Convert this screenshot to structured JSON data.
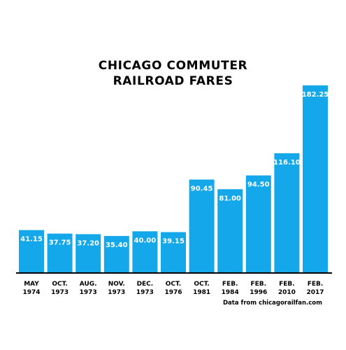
{
  "title_lines": [
    "CHICAGO COMMUTER",
    "RAILROAD FARES"
  ],
  "source_note": "Data from chicagorailfan.com",
  "colors": {
    "bar": "#14A8EB",
    "bar_label": "#ffffff",
    "text": "#000000",
    "axis": "#000000"
  },
  "chart_data": {
    "type": "bar",
    "title": "CHICAGO COMMUTER RAILROAD FARES",
    "categories": [
      [
        "MAY",
        "1974"
      ],
      [
        "OCT.",
        "1973"
      ],
      [
        "AUG.",
        "1973"
      ],
      [
        "NOV.",
        "1973"
      ],
      [
        "DEC.",
        "1973"
      ],
      [
        "OCT.",
        "1976"
      ],
      [
        "OCT.",
        "1981"
      ],
      [
        "FEB.",
        "1984"
      ],
      [
        "FEB.",
        "1996"
      ],
      [
        "FEB.",
        "2010"
      ],
      [
        "FEB.",
        "2017"
      ]
    ],
    "values": [
      41.15,
      37.75,
      37.2,
      35.4,
      40.0,
      39.15,
      90.45,
      81.0,
      94.5,
      116.1,
      182.25
    ],
    "value_labels": [
      "41.15",
      "37.75",
      "37.20",
      "35.40",
      "40.00",
      "39.15",
      "90.45",
      "81.00",
      "94.50",
      "116.10",
      "182.25"
    ],
    "xlabel": "",
    "ylabel": "",
    "ylim": [
      0,
      182.25
    ],
    "grid": false,
    "legend": "none"
  }
}
